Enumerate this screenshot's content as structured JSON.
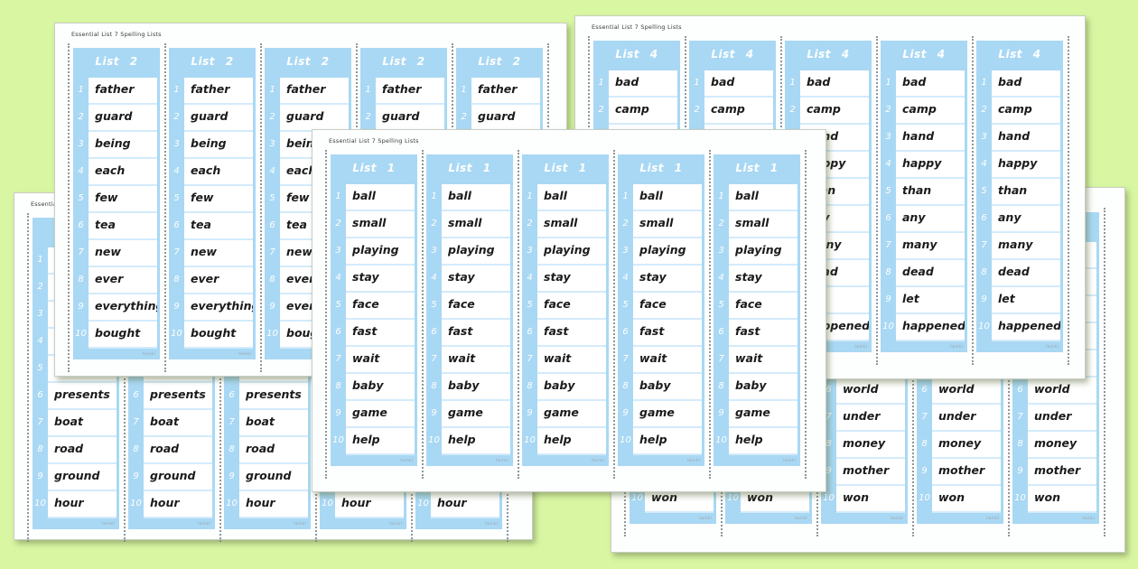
{
  "background_color": "#d9f7a3",
  "page_header": "Essential List 7 Spelling Lists",
  "watermark": "twinkl",
  "colors": {
    "strip_blue": "#a9d8f4",
    "row_separator": "#d3ebfb",
    "word_ink": "#1b1b1b",
    "list_title_text": "#ffffff"
  },
  "row_numbers": [
    "1",
    "2",
    "3",
    "4",
    "5",
    "6",
    "7",
    "8",
    "9",
    "10"
  ],
  "strips_per_sheet": 5,
  "pages": [
    {
      "name": "list-2-sheet",
      "list_label": "List 2",
      "words": [
        "father",
        "guard",
        "being",
        "each",
        "few",
        "tea",
        "new",
        "ever",
        "everything",
        "bought"
      ]
    },
    {
      "name": "list-4-sheet",
      "list_label": "List 4",
      "words": [
        "bad",
        "camp",
        "hand",
        "happy",
        "than",
        "any",
        "many",
        "dead",
        "let",
        "happened"
      ]
    },
    {
      "name": "list-3-sheet-partially-hidden",
      "list_label": "",
      "words": [
        "",
        "",
        "",
        "",
        "",
        "presents",
        "boat",
        "road",
        "ground",
        "hour"
      ]
    },
    {
      "name": "list-5-sheet-partially-hidden",
      "list_label": "",
      "words": [
        "",
        "",
        "",
        "",
        "",
        "world",
        "under",
        "money",
        "mother",
        "won"
      ]
    },
    {
      "name": "list-1-sheet",
      "list_label": "List 1",
      "words": [
        "ball",
        "small",
        "playing",
        "stay",
        "face",
        "fast",
        "wait",
        "baby",
        "game",
        "help"
      ]
    }
  ]
}
